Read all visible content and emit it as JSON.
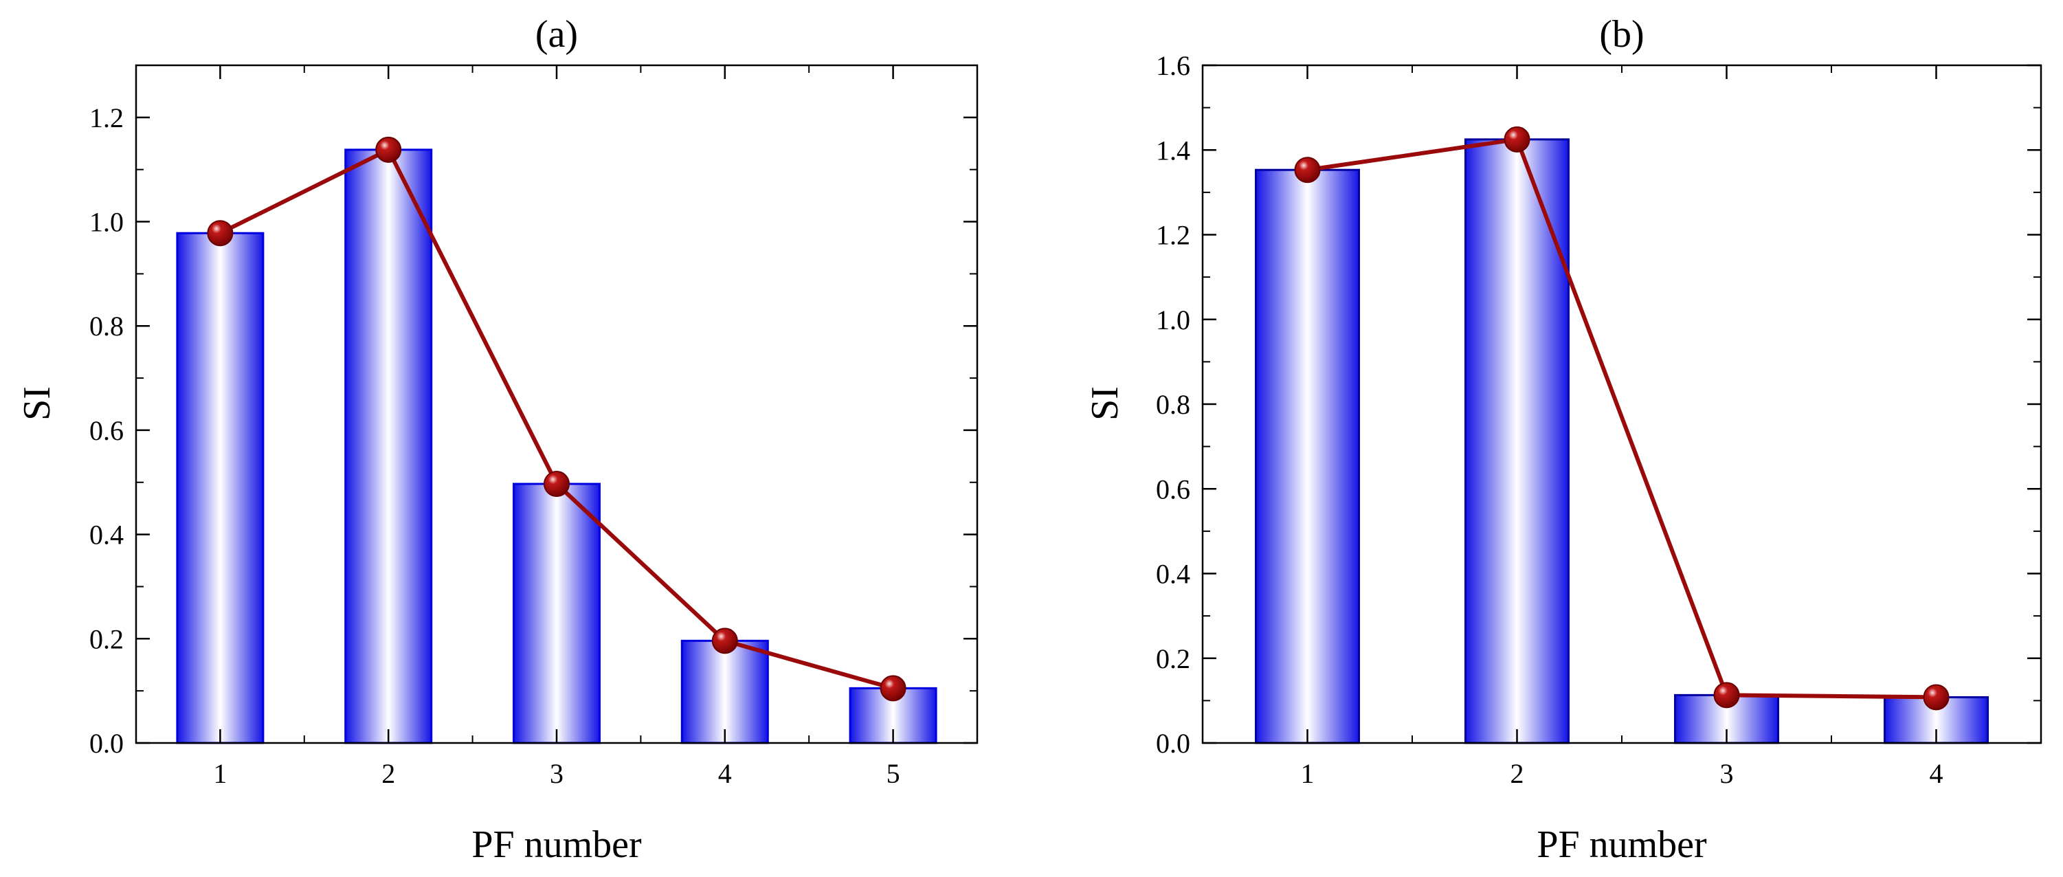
{
  "chart_data": [
    {
      "type": "bar",
      "panel": "a",
      "title": "(a)",
      "xlabel": "PF number",
      "ylabel": "SI",
      "categories": [
        "1",
        "2",
        "3",
        "4",
        "5"
      ],
      "series": [
        {
          "name": "bars",
          "type": "bar",
          "values": [
            0.978,
            1.138,
            0.497,
            0.196,
            0.105
          ]
        },
        {
          "name": "line",
          "type": "line",
          "values": [
            0.978,
            1.138,
            0.497,
            0.196,
            0.105
          ]
        }
      ],
      "ylim": [
        0,
        1.3
      ],
      "yticks": [
        0.0,
        0.2,
        0.4,
        0.6,
        0.8,
        1.0,
        1.2
      ],
      "ytick_labels": [
        "0.0",
        "0.2",
        "0.4",
        "0.6",
        "0.8",
        "1.0",
        "1.2"
      ],
      "grid": false,
      "colors": {
        "bar_edge": "#0000e0",
        "bar_fill_center": "#ffffff",
        "bar_fill_edge": "#1414e6",
        "line": "#9b0a0a",
        "marker": "#a00000"
      }
    },
    {
      "type": "bar",
      "panel": "b",
      "title": "(b)",
      "xlabel": "PF number",
      "ylabel": "SI",
      "categories": [
        "1",
        "2",
        "3",
        "4"
      ],
      "series": [
        {
          "name": "bars",
          "type": "bar",
          "values": [
            1.353,
            1.425,
            0.113,
            0.108
          ]
        },
        {
          "name": "line",
          "type": "line",
          "values": [
            1.353,
            1.425,
            0.113,
            0.108
          ]
        }
      ],
      "ylim": [
        0,
        1.6
      ],
      "yticks": [
        0.0,
        0.2,
        0.4,
        0.6,
        0.8,
        1.0,
        1.2,
        1.4,
        1.6
      ],
      "ytick_labels": [
        "0.0",
        "0.2",
        "0.4",
        "0.6",
        "0.8",
        "1.0",
        "1.2",
        "1.4",
        "1.6"
      ],
      "grid": false,
      "colors": {
        "bar_edge": "#0000a0",
        "bar_fill_center": "#ffffff",
        "bar_fill_edge": "#1414e6",
        "line": "#9b0a0a",
        "marker": "#a00000"
      }
    }
  ]
}
